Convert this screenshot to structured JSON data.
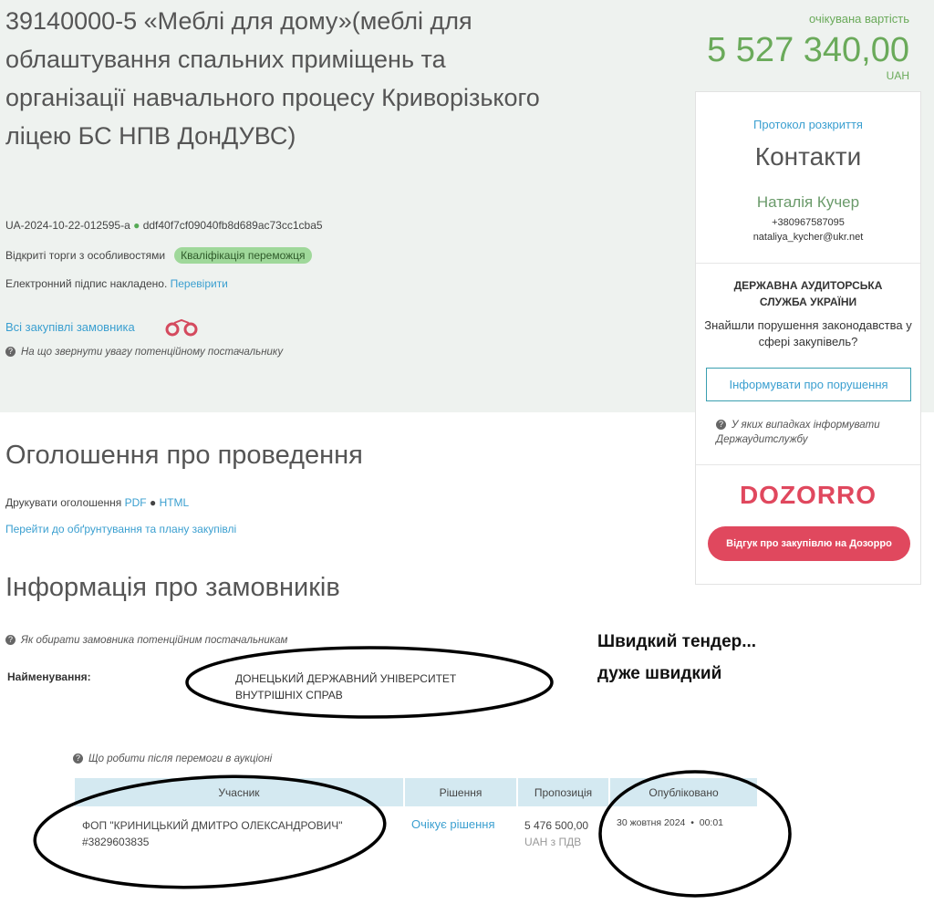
{
  "tender": {
    "title": "39140000-5 «Меблі для дому»(меблі для облаштування спальних приміщень та організації навчального процесу Криворізького ліцею БС НПВ ДонДУВС)",
    "id": "UA-2024-10-22-012595-a",
    "hash": "ddf40f7cf09040fb8d689ac73cc1cba5",
    "procedure": "Відкриті торги з особливостями",
    "status": "Кваліфікація переможця",
    "signature": "Електронний підпис накладено.",
    "verify": "Перевірити",
    "all_purchases": "Всі закупівлі замовника",
    "hint": "На що звернути увагу потенційному постачальнику"
  },
  "price": {
    "label": "очікувана вартість",
    "value": "5 527 340,00",
    "currency": "UAH"
  },
  "sidebar": {
    "protocol": "Протокол розкриття",
    "contacts_title": "Контакти",
    "name": "Наталія Кучер",
    "phone": "+380967587095",
    "email": "nataliya_kycher@ukr.net",
    "audit_title": "ДЕРЖАВНА АУДИТОРСЬКА СЛУЖБА УКРАЇНИ",
    "audit_question": "Знайшли порушення законодавства у сфері закупівель?",
    "report_button": "Інформувати про порушення",
    "audit_hint": "У яких випадках інформувати Держаудитслужбу",
    "logo": "DOZORRO",
    "feedback_button": "Відгук про закупівлю на Дозорро"
  },
  "announcement": {
    "heading": "Оголошення про проведення",
    "print": "Друкувати оголошення",
    "pdf": "PDF",
    "html": "HTML",
    "plan_link": "Перейти до обґрунтування та плану закупівлі"
  },
  "customers": {
    "heading": "Інформація про замовників",
    "hint": "Як обирати замовника потенційним постачальникам",
    "name_label": "Найменування:",
    "name": "ДОНЕЦЬКИЙ ДЕРЖАВНИЙ УНІВЕРСИТЕТ ВНУТРІШНІХ СПРАВ"
  },
  "annotation": {
    "line1": "Швидкий тендер...",
    "line2": "дуже швидкий"
  },
  "bids": {
    "hint": "Що робити після перемоги в аукціоні",
    "columns": [
      "Учасник",
      "Рішення",
      "Пропозиція",
      "Опубліковано"
    ],
    "rows": [
      {
        "participant": "ФОП \"КРИНИЦЬКИЙ ДМИТРО ОЛЕКСАНДРОВИЧ\"",
        "code": "#3829603835",
        "decision": "Очікує рішення",
        "amount": "5 476 500,00",
        "amount_note": "UAH з ПДВ",
        "date": "30 жовтня 2024",
        "time": "00:01"
      }
    ]
  }
}
